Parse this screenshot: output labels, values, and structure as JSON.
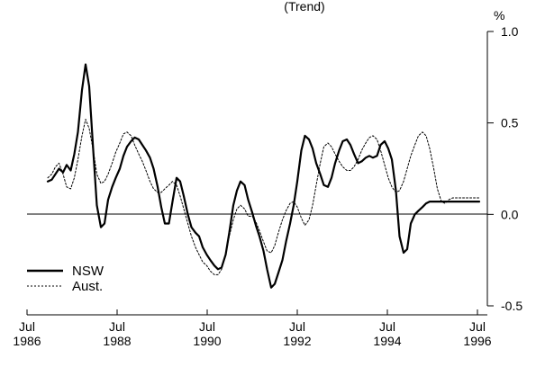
{
  "chart_data": {
    "type": "line",
    "title": "(Trend)",
    "ylabel": "%",
    "xlim": [
      1986.5,
      1996.5
    ],
    "ylim": [
      -0.5,
      1.0
    ],
    "x_ticks": [
      {
        "x": 1986.5,
        "label": [
          "Jul",
          "1986"
        ]
      },
      {
        "x": 1988.5,
        "label": [
          "Jul",
          "1988"
        ]
      },
      {
        "x": 1990.5,
        "label": [
          "Jul",
          "1990"
        ]
      },
      {
        "x": 1992.5,
        "label": [
          "Jul",
          "1992"
        ]
      },
      {
        "x": 1994.5,
        "label": [
          "Jul",
          "1994"
        ]
      },
      {
        "x": 1996.5,
        "label": [
          "Jul",
          "1996"
        ]
      }
    ],
    "y_ticks": [
      {
        "y": 1.0,
        "label": "1.0"
      },
      {
        "y": 0.5,
        "label": "0.5"
      },
      {
        "y": 0.0,
        "label": "0.0"
      },
      {
        "y": -0.5,
        "label": "-0.5"
      }
    ],
    "legend": {
      "position": "lower-left"
    },
    "series": [
      {
        "name": "NSW",
        "color": "#000000",
        "style": "solid",
        "x": [
          1986.96,
          1987.05,
          1987.13,
          1987.21,
          1987.3,
          1987.38,
          1987.47,
          1987.55,
          1987.63,
          1987.72,
          1987.8,
          1987.88,
          1987.97,
          1988.05,
          1988.14,
          1988.22,
          1988.3,
          1988.39,
          1988.47,
          1988.56,
          1988.64,
          1988.72,
          1988.81,
          1988.89,
          1988.98,
          1989.06,
          1989.14,
          1989.23,
          1989.31,
          1989.4,
          1989.48,
          1989.56,
          1989.65,
          1989.73,
          1989.82,
          1989.9,
          1989.98,
          1990.07,
          1990.15,
          1990.24,
          1990.32,
          1990.4,
          1990.49,
          1990.57,
          1990.66,
          1990.74,
          1990.82,
          1990.91,
          1990.99,
          1991.08,
          1991.16,
          1991.24,
          1991.33,
          1991.41,
          1991.5,
          1991.58,
          1991.66,
          1991.75,
          1991.83,
          1991.92,
          1992.0,
          1992.08,
          1992.17,
          1992.25,
          1992.34,
          1992.42,
          1992.5,
          1992.59,
          1992.67,
          1992.76,
          1992.84,
          1992.92,
          1993.01,
          1993.09,
          1993.18,
          1993.26,
          1993.34,
          1993.43,
          1993.51,
          1993.6,
          1993.68,
          1993.76,
          1993.85,
          1993.93,
          1994.02,
          1994.1,
          1994.18,
          1994.27,
          1994.35,
          1994.44,
          1994.52,
          1994.6,
          1994.69,
          1994.77,
          1994.86,
          1994.94,
          1995.02,
          1995.11,
          1995.19,
          1995.28,
          1995.36,
          1995.44,
          1995.53,
          1995.61,
          1995.7,
          1995.78,
          1995.86,
          1995.95,
          1996.03,
          1996.12,
          1996.2,
          1996.28,
          1996.37,
          1996.45,
          1996.54
        ],
        "y": [
          0.18,
          0.19,
          0.22,
          0.25,
          0.23,
          0.27,
          0.24,
          0.33,
          0.45,
          0.68,
          0.82,
          0.7,
          0.35,
          0.05,
          -0.07,
          -0.05,
          0.08,
          0.15,
          0.2,
          0.25,
          0.32,
          0.37,
          0.4,
          0.42,
          0.41,
          0.38,
          0.35,
          0.31,
          0.25,
          0.15,
          0.04,
          -0.05,
          -0.05,
          0.07,
          0.2,
          0.18,
          0.1,
          0.0,
          -0.07,
          -0.1,
          -0.12,
          -0.18,
          -0.22,
          -0.25,
          -0.28,
          -0.3,
          -0.29,
          -0.22,
          -0.1,
          0.05,
          0.13,
          0.18,
          0.16,
          0.08,
          0.01,
          -0.06,
          -0.12,
          -0.2,
          -0.3,
          -0.4,
          -0.38,
          -0.32,
          -0.25,
          -0.15,
          -0.05,
          0.05,
          0.18,
          0.35,
          0.43,
          0.41,
          0.36,
          0.28,
          0.22,
          0.16,
          0.15,
          0.2,
          0.28,
          0.35,
          0.4,
          0.41,
          0.38,
          0.33,
          0.28,
          0.29,
          0.31,
          0.32,
          0.31,
          0.32,
          0.38,
          0.4,
          0.36,
          0.3,
          0.13,
          -0.12,
          -0.21,
          -0.19,
          -0.05,
          0.0,
          0.02,
          0.04,
          0.06,
          0.07,
          0.07,
          0.07,
          0.07,
          0.07,
          0.07,
          0.07,
          0.07,
          0.07,
          0.07,
          0.07,
          0.07,
          0.07,
          0.07
        ]
      },
      {
        "name": "Aust.",
        "color": "#000000",
        "style": "dotted",
        "x": [
          1986.96,
          1987.05,
          1987.13,
          1987.21,
          1987.3,
          1987.38,
          1987.47,
          1987.55,
          1987.63,
          1987.72,
          1987.8,
          1987.88,
          1987.97,
          1988.05,
          1988.14,
          1988.22,
          1988.3,
          1988.39,
          1988.47,
          1988.56,
          1988.64,
          1988.72,
          1988.81,
          1988.89,
          1988.98,
          1989.06,
          1989.14,
          1989.23,
          1989.31,
          1989.4,
          1989.48,
          1989.56,
          1989.65,
          1989.73,
          1989.82,
          1989.9,
          1989.98,
          1990.07,
          1990.15,
          1990.24,
          1990.32,
          1990.4,
          1990.49,
          1990.57,
          1990.66,
          1990.74,
          1990.82,
          1990.91,
          1990.99,
          1991.08,
          1991.16,
          1991.24,
          1991.33,
          1991.41,
          1991.5,
          1991.58,
          1991.66,
          1991.75,
          1991.83,
          1991.92,
          1992.0,
          1992.08,
          1992.17,
          1992.25,
          1992.34,
          1992.42,
          1992.5,
          1992.59,
          1992.67,
          1992.76,
          1992.84,
          1992.92,
          1993.01,
          1993.09,
          1993.18,
          1993.26,
          1993.34,
          1993.43,
          1993.51,
          1993.6,
          1993.68,
          1993.76,
          1993.85,
          1993.93,
          1994.02,
          1994.1,
          1994.18,
          1994.27,
          1994.35,
          1994.44,
          1994.52,
          1994.6,
          1994.69,
          1994.77,
          1994.86,
          1994.94,
          1995.02,
          1995.11,
          1995.19,
          1995.28,
          1995.36,
          1995.44,
          1995.53,
          1995.61,
          1995.7,
          1995.78,
          1995.86,
          1995.95,
          1996.03,
          1996.12,
          1996.2,
          1996.28,
          1996.37,
          1996.45,
          1996.54
        ],
        "y": [
          0.2,
          0.22,
          0.26,
          0.28,
          0.22,
          0.15,
          0.14,
          0.2,
          0.3,
          0.43,
          0.52,
          0.47,
          0.35,
          0.22,
          0.17,
          0.18,
          0.22,
          0.28,
          0.34,
          0.39,
          0.44,
          0.45,
          0.43,
          0.38,
          0.33,
          0.29,
          0.24,
          0.18,
          0.14,
          0.12,
          0.12,
          0.14,
          0.16,
          0.18,
          0.16,
          0.1,
          0.03,
          -0.05,
          -0.12,
          -0.18,
          -0.22,
          -0.26,
          -0.28,
          -0.31,
          -0.33,
          -0.33,
          -0.3,
          -0.22,
          -0.12,
          -0.03,
          0.03,
          0.05,
          0.03,
          -0.01,
          -0.01,
          -0.04,
          -0.09,
          -0.15,
          -0.2,
          -0.21,
          -0.17,
          -0.1,
          -0.03,
          0.02,
          0.06,
          0.07,
          0.04,
          -0.02,
          -0.06,
          -0.03,
          0.05,
          0.16,
          0.28,
          0.37,
          0.39,
          0.37,
          0.33,
          0.29,
          0.26,
          0.24,
          0.24,
          0.26,
          0.3,
          0.35,
          0.39,
          0.42,
          0.43,
          0.41,
          0.35,
          0.27,
          0.2,
          0.15,
          0.12,
          0.13,
          0.18,
          0.25,
          0.32,
          0.38,
          0.43,
          0.45,
          0.43,
          0.36,
          0.25,
          0.14,
          0.07,
          0.06,
          0.08,
          0.09,
          0.09,
          0.09,
          0.09,
          0.09,
          0.09,
          0.09,
          0.09
        ]
      }
    ]
  }
}
